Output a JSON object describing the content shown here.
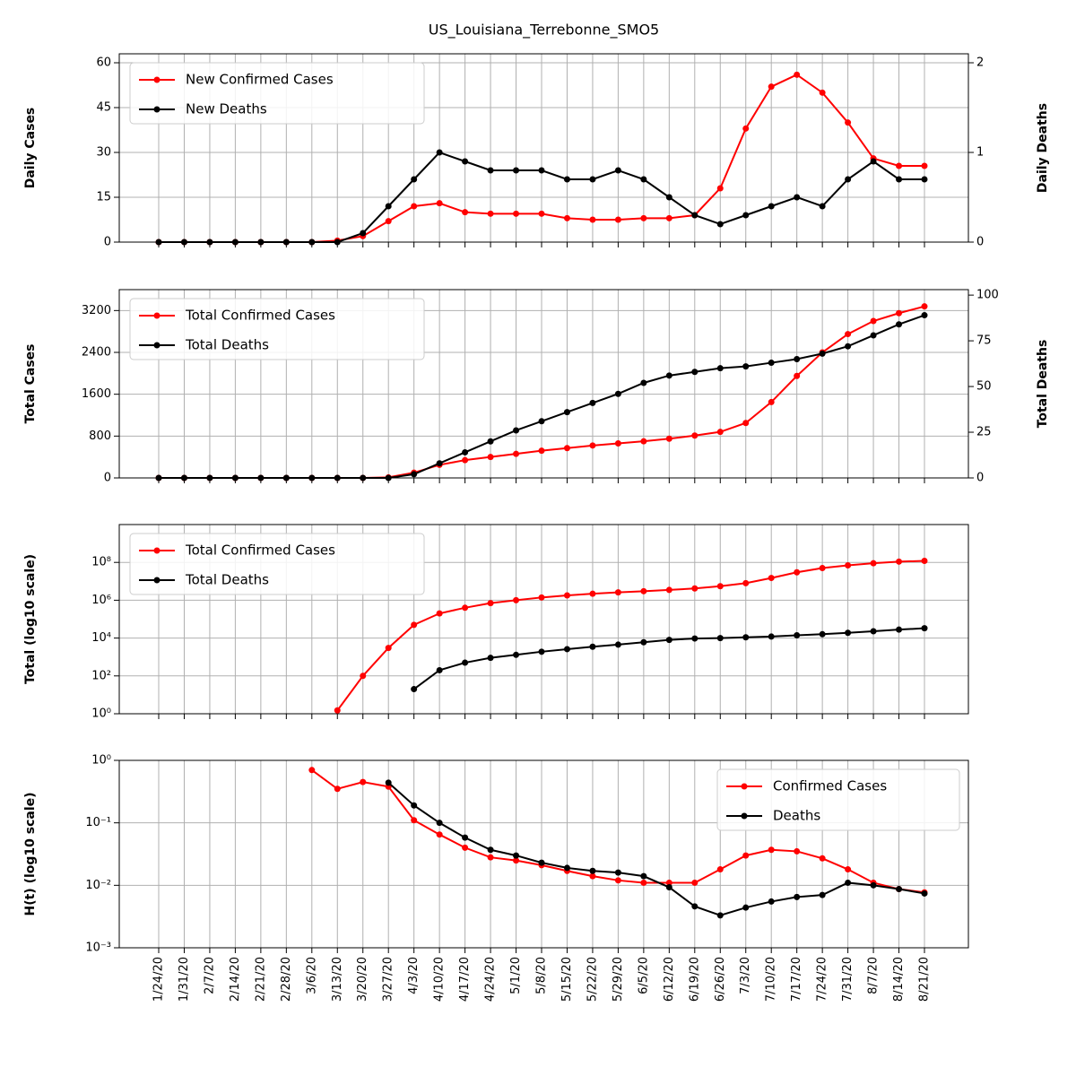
{
  "chart_data": [
    {
      "type": "line",
      "title": "US_Louisiana_Terrebonne_SMO5",
      "ylabel": "Daily Cases",
      "y2label": "Daily Deaths",
      "legend": "upper left",
      "grid": true,
      "log": false,
      "x": [
        "1/24/20",
        "1/31/20",
        "2/7/20",
        "2/14/20",
        "2/21/20",
        "2/28/20",
        "3/6/20",
        "3/13/20",
        "3/20/20",
        "3/27/20",
        "4/3/20",
        "4/10/20",
        "4/17/20",
        "4/24/20",
        "5/1/20",
        "5/8/20",
        "5/15/20",
        "5/22/20",
        "5/29/20",
        "6/5/20",
        "6/12/20",
        "6/19/20",
        "6/26/20",
        "7/3/20",
        "7/10/20",
        "7/17/20",
        "7/24/20",
        "7/31/20",
        "8/7/20",
        "8/14/20",
        "8/21/20"
      ],
      "ylim": [
        0,
        63
      ],
      "yticks": [
        0,
        15,
        30,
        45,
        60
      ],
      "y2lim": [
        0,
        2.1
      ],
      "y2ticks": [
        0,
        1,
        2
      ],
      "series": [
        {
          "name": "New Confirmed Cases",
          "color": "#ff0000",
          "values": [
            0,
            0,
            0,
            0,
            0,
            0,
            0,
            0.5,
            2,
            7,
            12,
            13,
            10,
            9.5,
            9.5,
            9.5,
            8,
            7.5,
            7.5,
            8,
            8,
            9,
            18,
            38,
            52,
            56,
            50,
            40,
            28,
            25.5,
            25.5
          ]
        },
        {
          "name": "New Deaths",
          "color": "#000000",
          "axis": "y2",
          "values": [
            0,
            0,
            0,
            0,
            0,
            0,
            0,
            0,
            0.1,
            0.4,
            0.7,
            1,
            0.9,
            0.8,
            0.8,
            0.8,
            0.7,
            0.7,
            0.8,
            0.7,
            0.5,
            0.3,
            0.2,
            0.3,
            0.4,
            0.5,
            0.4,
            0.7,
            0.9,
            0.7,
            0.7
          ]
        }
      ]
    },
    {
      "type": "line",
      "ylabel": "Total Cases",
      "y2label": "Total Deaths",
      "legend": "upper left",
      "grid": true,
      "log": false,
      "x": [
        "1/24/20",
        "1/31/20",
        "2/7/20",
        "2/14/20",
        "2/21/20",
        "2/28/20",
        "3/6/20",
        "3/13/20",
        "3/20/20",
        "3/27/20",
        "4/3/20",
        "4/10/20",
        "4/17/20",
        "4/24/20",
        "5/1/20",
        "5/8/20",
        "5/15/20",
        "5/22/20",
        "5/29/20",
        "6/5/20",
        "6/12/20",
        "6/19/20",
        "6/26/20",
        "7/3/20",
        "7/10/20",
        "7/17/20",
        "7/24/20",
        "7/31/20",
        "8/7/20",
        "8/14/20",
        "8/21/20"
      ],
      "ylim": [
        0,
        3600
      ],
      "yticks": [
        0,
        800,
        1600,
        2400,
        3200
      ],
      "y2lim": [
        0,
        103
      ],
      "y2ticks": [
        0,
        25,
        50,
        75,
        100
      ],
      "series": [
        {
          "name": "Total Confirmed Cases",
          "color": "#ff0000",
          "values": [
            0,
            0,
            0,
            0,
            0,
            0,
            0,
            0,
            0,
            10,
            100,
            250,
            340,
            400,
            460,
            520,
            570,
            620,
            660,
            700,
            750,
            810,
            880,
            1050,
            1450,
            1950,
            2400,
            2750,
            3000,
            3150,
            3280
          ]
        },
        {
          "name": "Total Deaths",
          "color": "#000000",
          "axis": "y2",
          "values": [
            0,
            0,
            0,
            0,
            0,
            0,
            0,
            0,
            0,
            0,
            2,
            8,
            14,
            20,
            26,
            31,
            36,
            41,
            46,
            52,
            56,
            58,
            60,
            61,
            63,
            65,
            68,
            72,
            78,
            84,
            89
          ]
        }
      ]
    },
    {
      "type": "line",
      "ylabel": "Total (log10 scale)",
      "legend": "upper left",
      "grid": true,
      "log": true,
      "x": [
        "1/24/20",
        "1/31/20",
        "2/7/20",
        "2/14/20",
        "2/21/20",
        "2/28/20",
        "3/6/20",
        "3/13/20",
        "3/20/20",
        "3/27/20",
        "4/3/20",
        "4/10/20",
        "4/17/20",
        "4/24/20",
        "5/1/20",
        "5/8/20",
        "5/15/20",
        "5/22/20",
        "5/29/20",
        "6/5/20",
        "6/12/20",
        "6/19/20",
        "6/26/20",
        "7/3/20",
        "7/10/20",
        "7/17/20",
        "7/24/20",
        "7/31/20",
        "8/7/20",
        "8/14/20",
        "8/21/20"
      ],
      "ylim": [
        1,
        10000000000
      ],
      "yticks": [
        {
          "value": 1,
          "label": "10⁰"
        },
        {
          "value": 100,
          "label": "10²"
        },
        {
          "value": 10000,
          "label": "10⁴"
        },
        {
          "value": 1000000,
          "label": "10⁶"
        },
        {
          "value": 100000000,
          "label": "10⁸"
        }
      ],
      "series": [
        {
          "name": "Total Confirmed Cases",
          "color": "#ff0000",
          "values": [
            null,
            null,
            null,
            null,
            null,
            null,
            null,
            1.5,
            100,
            3000,
            50000,
            200000,
            400000,
            700000,
            1000000,
            1400000,
            1800000,
            2200000,
            2600000,
            3000000,
            3500000,
            4200000,
            5500000,
            8000000,
            15000000,
            30000000,
            50000000,
            70000000,
            90000000,
            110000000,
            120000000
          ]
        },
        {
          "name": "Total Deaths",
          "color": "#000000",
          "values": [
            null,
            null,
            null,
            null,
            null,
            null,
            null,
            null,
            null,
            null,
            20,
            200,
            500,
            900,
            1300,
            1900,
            2600,
            3500,
            4500,
            6000,
            8000,
            9500,
            10000,
            11000,
            12000,
            14000,
            16000,
            19000,
            23000,
            28000,
            33000
          ]
        }
      ]
    },
    {
      "type": "line",
      "ylabel": "H(t) (log10 scale)",
      "legend": "upper right",
      "grid": true,
      "log": true,
      "x": [
        "1/24/20",
        "1/31/20",
        "2/7/20",
        "2/14/20",
        "2/21/20",
        "2/28/20",
        "3/6/20",
        "3/13/20",
        "3/20/20",
        "3/27/20",
        "4/3/20",
        "4/10/20",
        "4/17/20",
        "4/24/20",
        "5/1/20",
        "5/8/20",
        "5/15/20",
        "5/22/20",
        "5/29/20",
        "6/5/20",
        "6/12/20",
        "6/19/20",
        "6/26/20",
        "7/3/20",
        "7/10/20",
        "7/17/20",
        "7/24/20",
        "7/31/20",
        "8/7/20",
        "8/14/20",
        "8/21/20"
      ],
      "ylim": [
        0.001,
        1
      ],
      "yticks": [
        {
          "value": 0.001,
          "label": "10⁻³"
        },
        {
          "value": 0.01,
          "label": "10⁻²"
        },
        {
          "value": 0.1,
          "label": "10⁻¹"
        },
        {
          "value": 1,
          "label": "10⁰"
        }
      ],
      "series": [
        {
          "name": "Confirmed Cases",
          "color": "#ff0000",
          "values": [
            null,
            null,
            null,
            null,
            null,
            null,
            0.7,
            0.35,
            0.45,
            0.38,
            0.11,
            0.065,
            0.04,
            0.028,
            0.025,
            0.021,
            0.017,
            0.014,
            0.012,
            0.011,
            0.011,
            0.011,
            0.018,
            0.03,
            0.037,
            0.035,
            0.027,
            0.018,
            0.011,
            0.0087,
            0.0077
          ]
        },
        {
          "name": "Deaths",
          "color": "#000000",
          "values": [
            null,
            null,
            null,
            null,
            null,
            null,
            null,
            null,
            null,
            0.44,
            0.19,
            0.1,
            0.058,
            0.037,
            0.03,
            0.023,
            0.019,
            0.017,
            0.016,
            0.014,
            0.0093,
            0.0046,
            0.0033,
            0.0044,
            0.0055,
            0.0065,
            0.007,
            0.011,
            0.01,
            0.0087,
            0.0074
          ]
        }
      ]
    }
  ]
}
